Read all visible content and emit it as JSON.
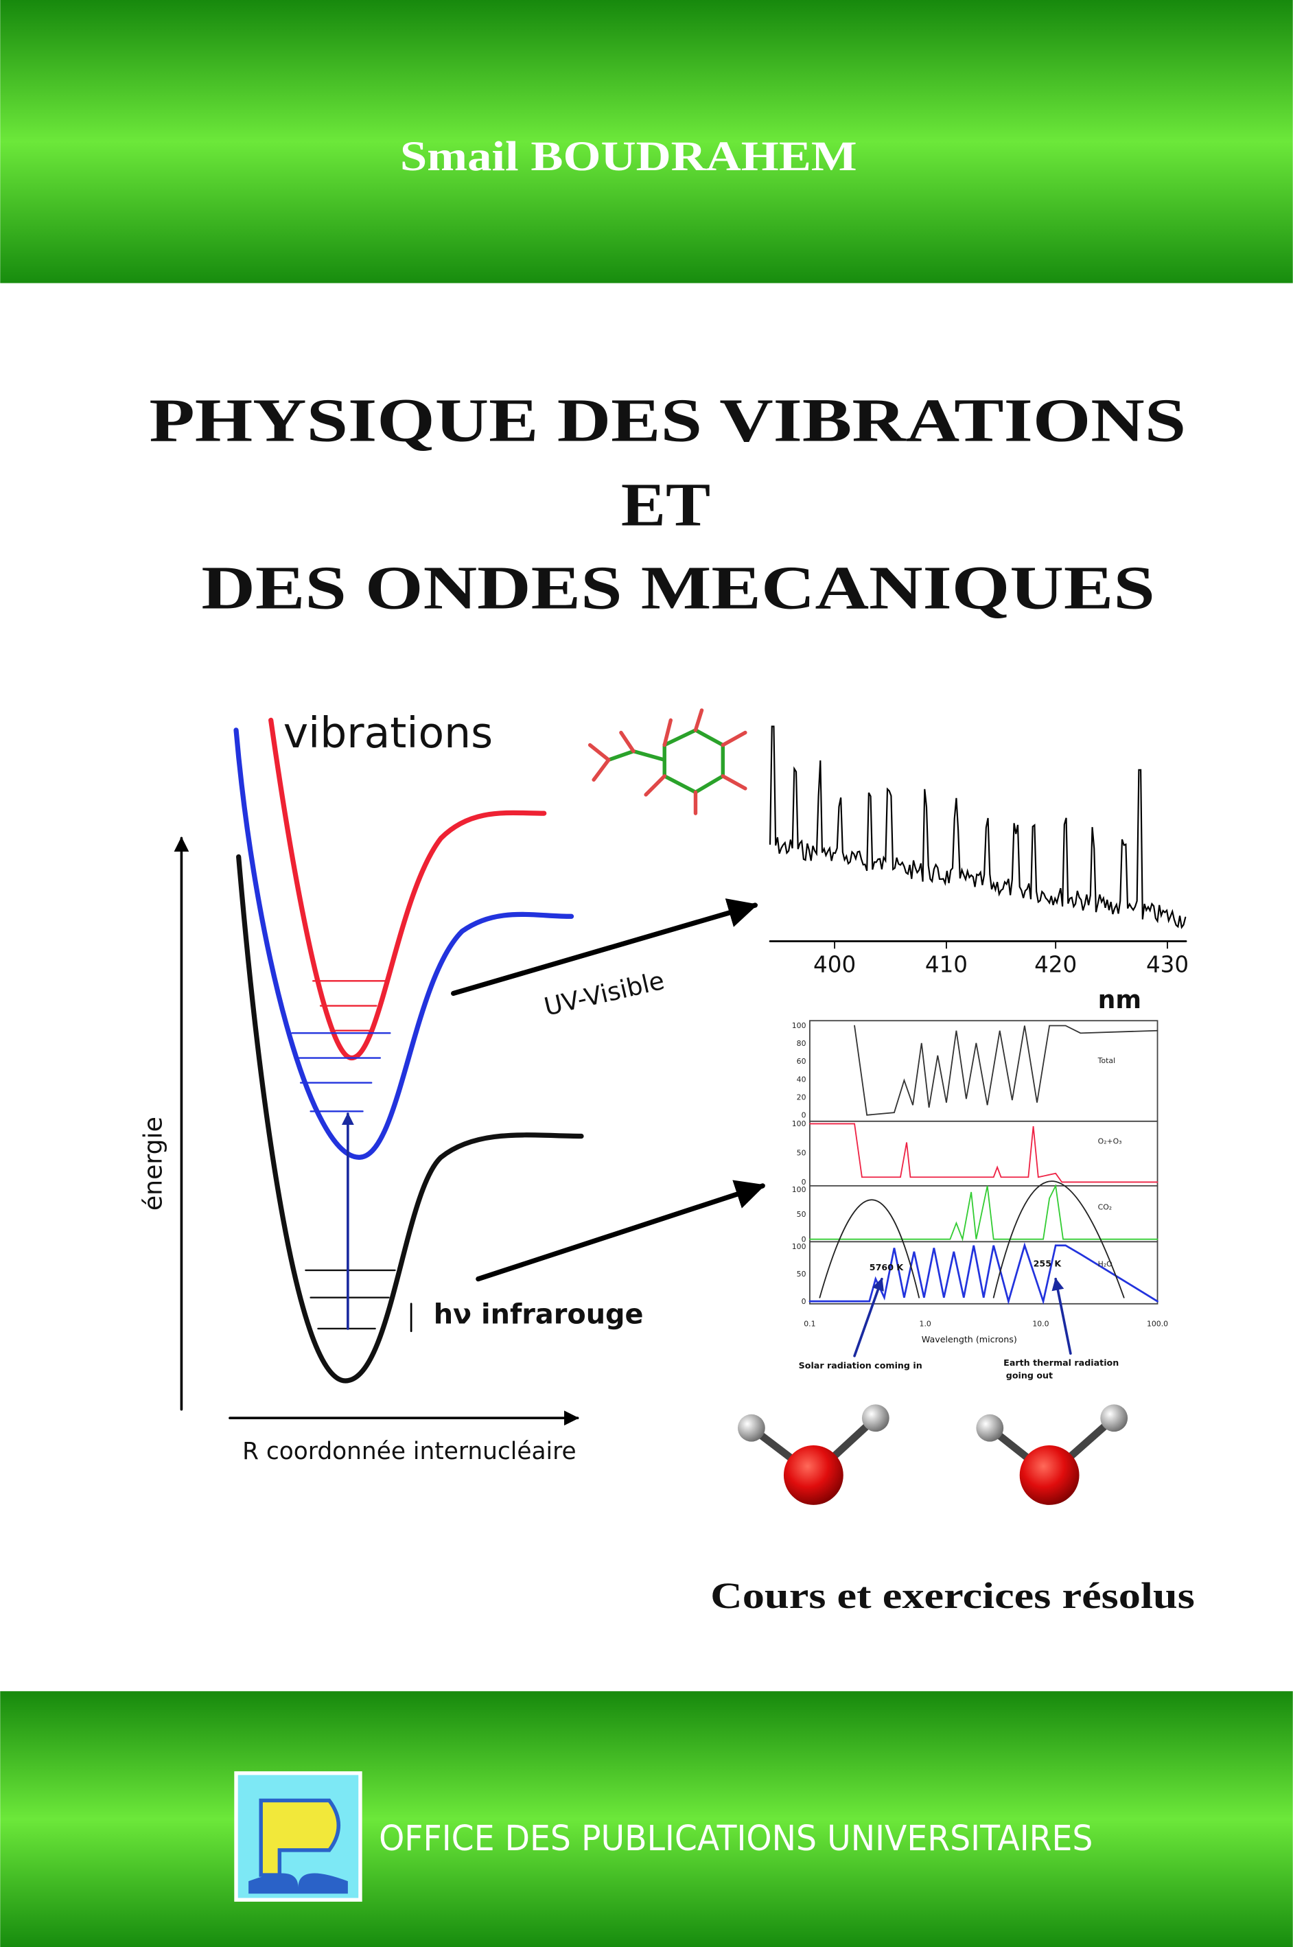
{
  "header": {
    "author": "Smail BOUDRAHEM"
  },
  "title": {
    "lines": [
      "PHYSIQUE DES VIBRATIONS",
      "ET",
      "DES ONDES MECANIQUES"
    ]
  },
  "figure": {
    "vibrations": "vibrations",
    "energy_axis": "énergie",
    "x_axis": "R coordonnée internucléaire",
    "uv": "UV-Visible",
    "ir": "hν infrarouge",
    "spectrum": {
      "xticks": [
        "400",
        "410",
        "420",
        "430"
      ],
      "unit": "nm"
    },
    "atmosphere": {
      "panels": [
        {
          "label": "Total",
          "yticks": [
            "100",
            "80",
            "60",
            "40",
            "20",
            "0"
          ]
        },
        {
          "label": "O₂+O₃",
          "yticks": [
            "100",
            "50",
            "0"
          ]
        },
        {
          "label": "CO₂",
          "yticks": [
            "100",
            "50",
            "0"
          ]
        },
        {
          "label": "H₂O",
          "yticks": [
            "100",
            "50",
            "0"
          ]
        }
      ],
      "xticks": [
        "0.1",
        "1.0",
        "10.0",
        "100.0"
      ],
      "x_axis": "Wavelength (microns)",
      "sun": "5760 K",
      "earth": "255 K",
      "solar_note": "Solar radiation coming in",
      "earth_note": [
        "Earth thermal radiation",
        "going out"
      ]
    }
  },
  "subtitle": "Cours et exercices résolus",
  "footer": {
    "publisher": "OFFICE DES PUBLICATIONS UNIVERSITAIRES"
  }
}
